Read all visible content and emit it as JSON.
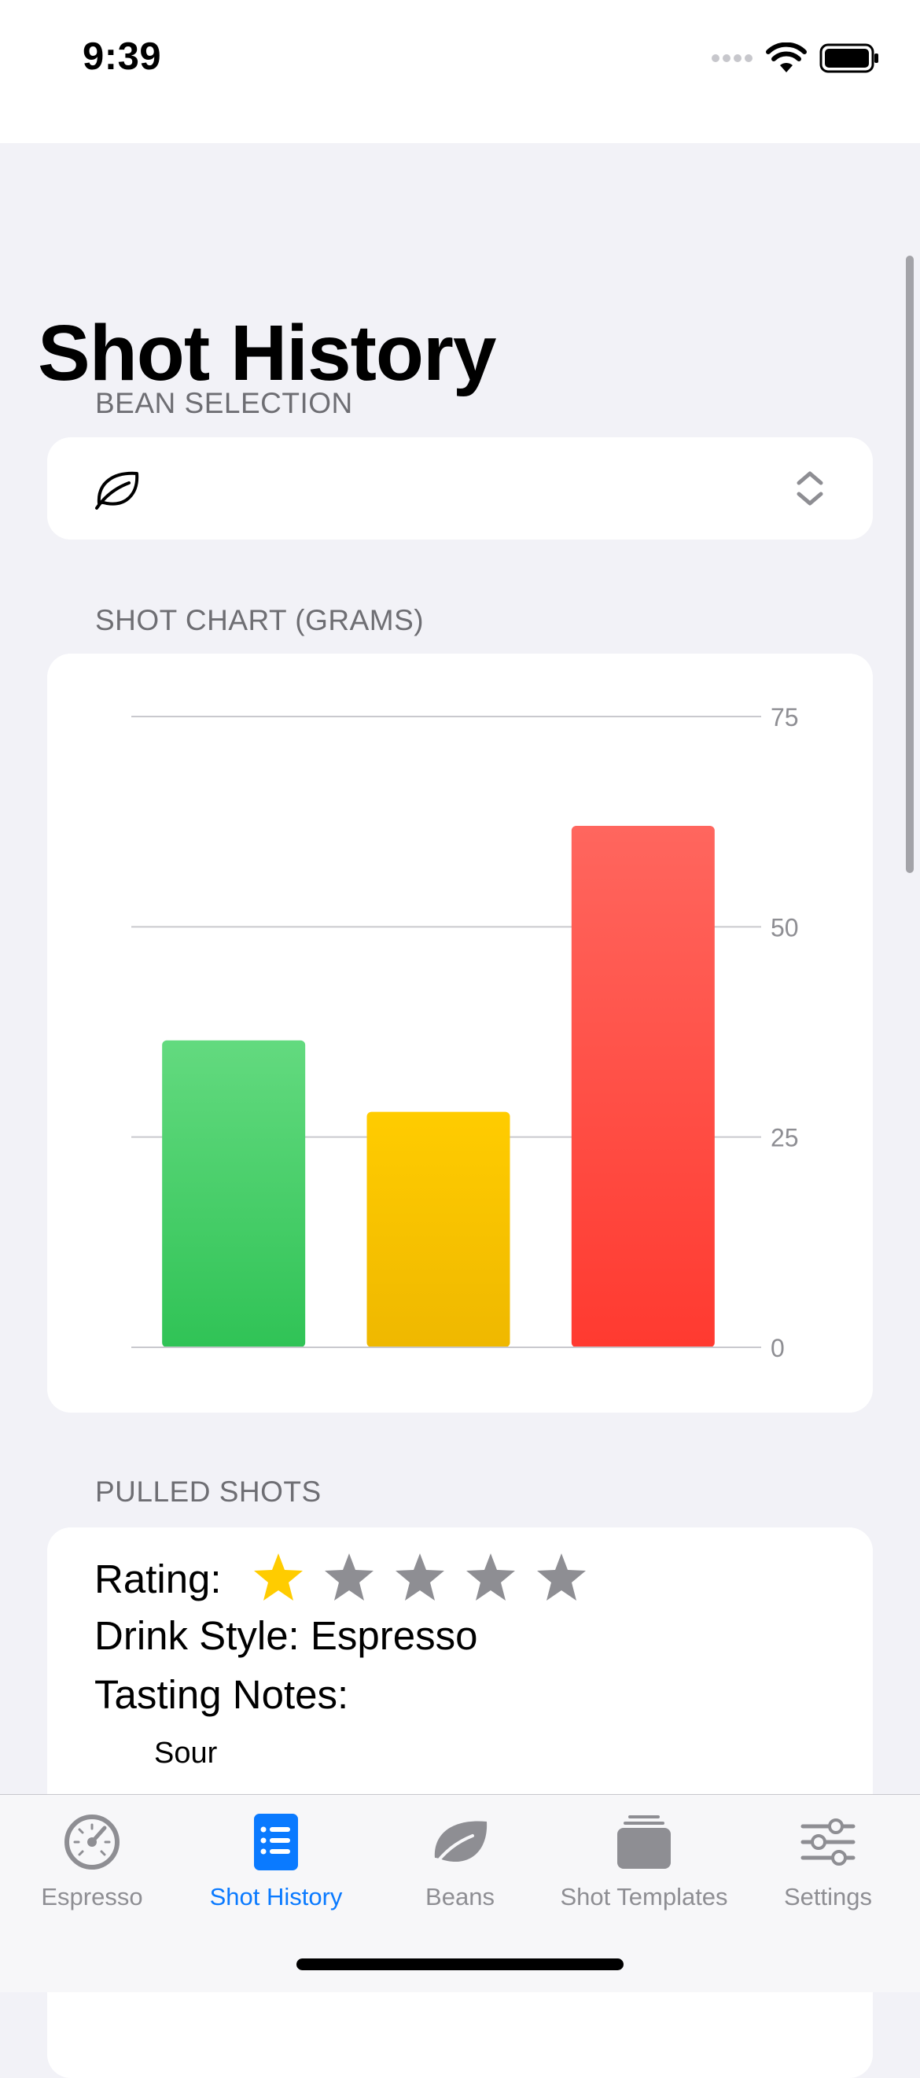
{
  "status_bar": {
    "time": "9:39",
    "icons": [
      "cellular-dots-icon",
      "wifi-icon",
      "battery-icon"
    ]
  },
  "page_title": "Shot History",
  "bean_section": {
    "header": "BEAN SELECTION",
    "selected_value": "",
    "icons": [
      "leaf-icon",
      "chevron-up-down-icon"
    ]
  },
  "chart_section": {
    "header": "SHOT CHART (GRAMS)"
  },
  "chart_data": {
    "type": "bar",
    "categories": [
      "",
      "",
      ""
    ],
    "values": [
      36.5,
      28,
      62
    ],
    "colors": [
      "#34c759",
      "#ffcc00",
      "#ff3b30"
    ],
    "y_ticks": [
      "0",
      "25",
      "50",
      "75"
    ],
    "ylim": [
      0,
      75
    ],
    "y_axis_side": "right",
    "grid": true,
    "title": "",
    "xlabel": "",
    "ylabel": ""
  },
  "shots_section": {
    "header": "PULLED SHOTS",
    "shots": [
      {
        "rating_label": "Rating:",
        "rating": 1,
        "rating_max": 5,
        "drink_style": "Drink Style: Espresso",
        "tasting_notes_label": "Tasting Notes:",
        "tasting_notes": [
          "Sour"
        ]
      }
    ]
  },
  "tab_bar": {
    "active": "Shot History",
    "active_color": "#0a7aff",
    "inactive_color": "#8e8e93",
    "tabs": [
      {
        "label": "Espresso",
        "icon": "gauge-icon"
      },
      {
        "label": "Shot History",
        "icon": "list-icon"
      },
      {
        "label": "Beans",
        "icon": "leaf-icon"
      },
      {
        "label": "Shot Templates",
        "icon": "tray-icon"
      },
      {
        "label": "Settings",
        "icon": "sliders-icon"
      }
    ]
  }
}
